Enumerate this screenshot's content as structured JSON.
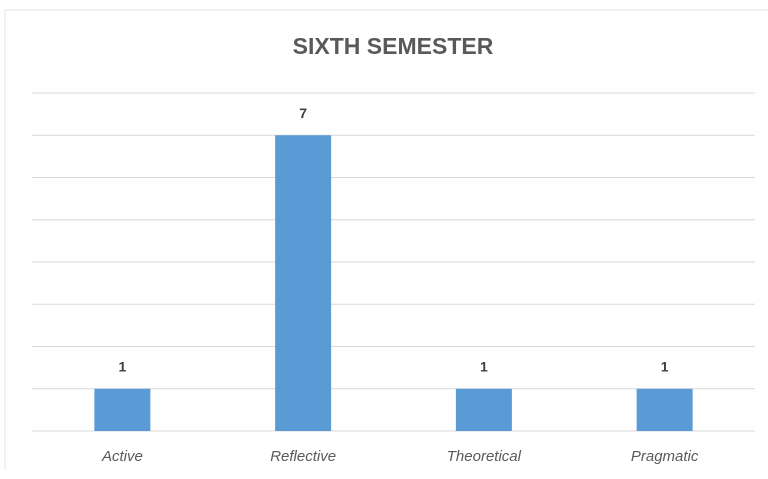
{
  "chart_data": {
    "type": "bar",
    "title": "SIXTH SEMESTER",
    "categories": [
      "Active",
      "Reflective",
      "Theoretical",
      "Pragmatic"
    ],
    "values": [
      1,
      7,
      1,
      1
    ],
    "color": "#5b9bd5",
    "ylim": [
      0,
      8
    ],
    "yticks": [
      0,
      1,
      2,
      3,
      4,
      5,
      6,
      7,
      8
    ],
    "grid": true
  }
}
